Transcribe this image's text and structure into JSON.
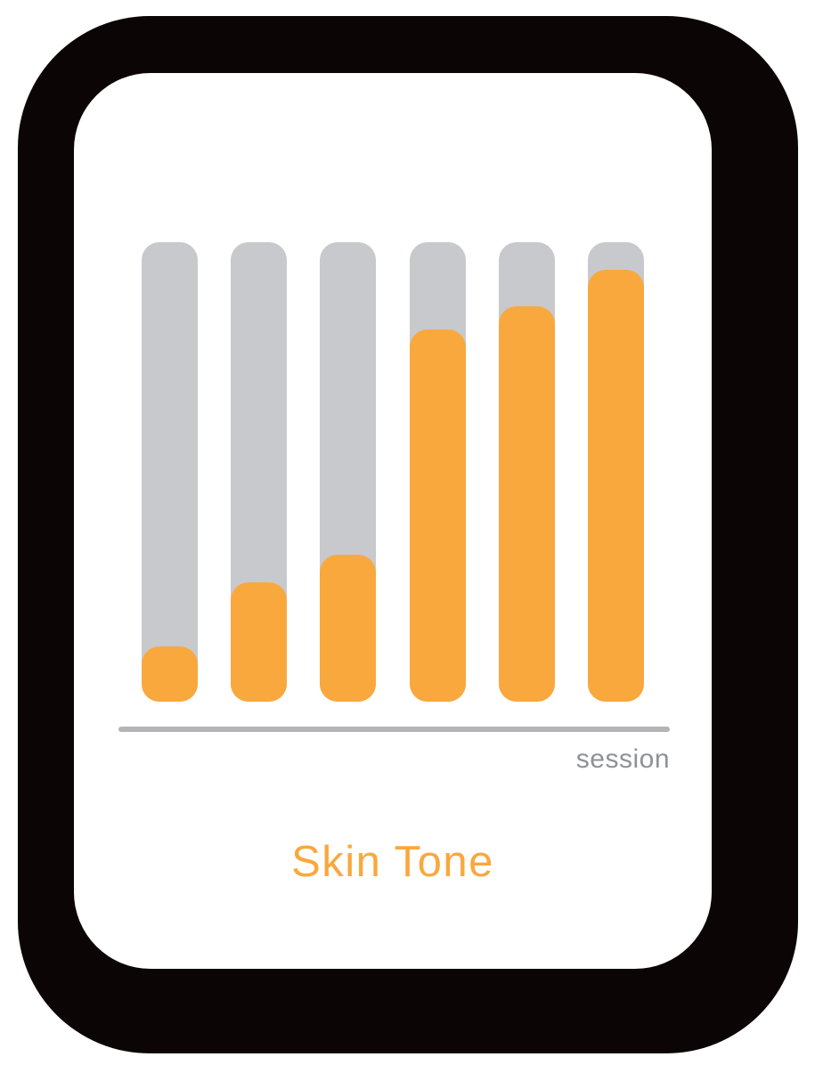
{
  "labels": {
    "title": "Skin Tone",
    "axis": "session"
  },
  "colors": {
    "accent_orange": "#F9A83E",
    "track_gray": "#C7C9CC",
    "axis_gray": "#B2B4B8",
    "label_gray": "#8E9196",
    "frame_black": "#0B0605",
    "card_bg": "#FFFFFF"
  },
  "chart_data": {
    "type": "bar",
    "title": "Skin Tone",
    "xlabel": "session",
    "ylabel": "",
    "num_bars": 6,
    "values_percent": [
      12,
      26,
      32,
      81,
      86,
      94
    ],
    "track_percent": 100,
    "ylim": [
      0,
      100
    ],
    "grid": false,
    "legend": false,
    "bar_color": "#F9A83E",
    "track_color": "#C7C9CC",
    "layout_hint": "progress-style vertical bars, orange fill over full-height gray tracks, x-axis only"
  }
}
